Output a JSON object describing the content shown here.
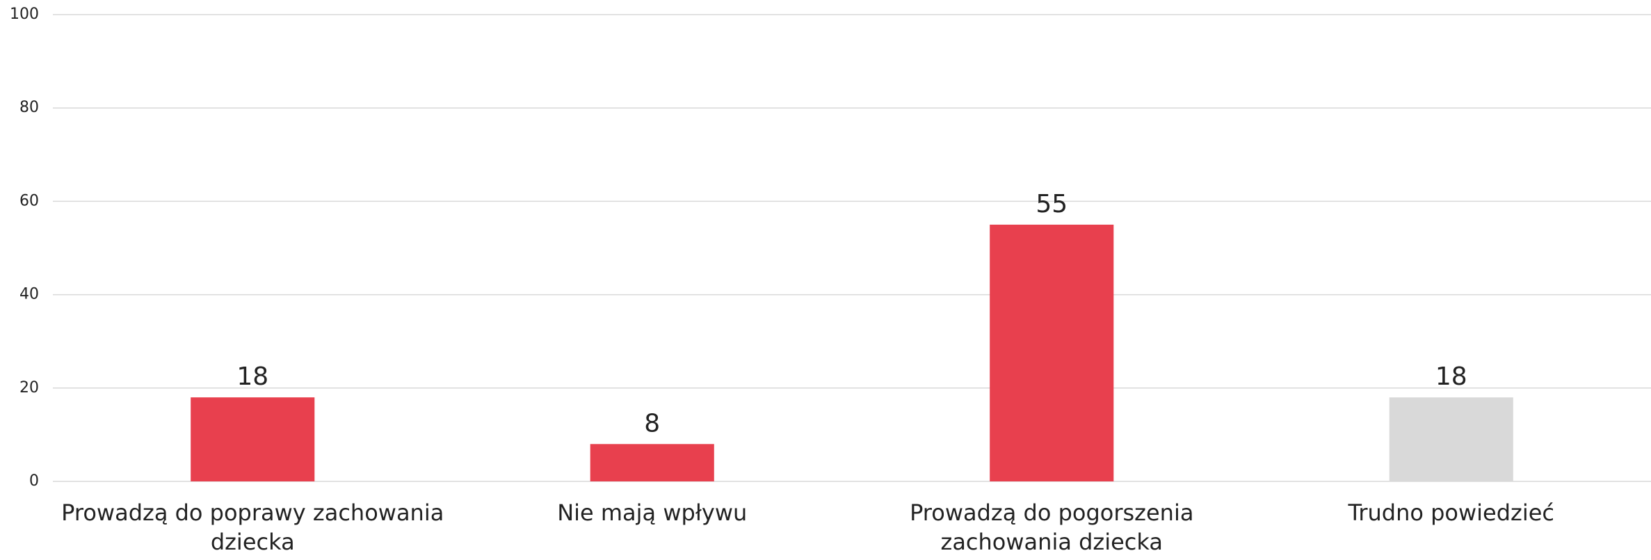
{
  "chart_data": {
    "type": "bar",
    "categories": [
      "Prowadzą do poprawy zachowania dziecka",
      "Nie mają wpływu",
      "Prowadzą do pogorszenia zachowania dziecka",
      "Trudno powiedzieć"
    ],
    "values": [
      18,
      8,
      55,
      18
    ],
    "colors": [
      "#e8404e",
      "#e8404e",
      "#e8404e",
      "#d9d9d9"
    ],
    "ylim": [
      0,
      100
    ],
    "yticks": [
      0,
      20,
      40,
      60,
      80,
      100
    ],
    "grid": true
  }
}
